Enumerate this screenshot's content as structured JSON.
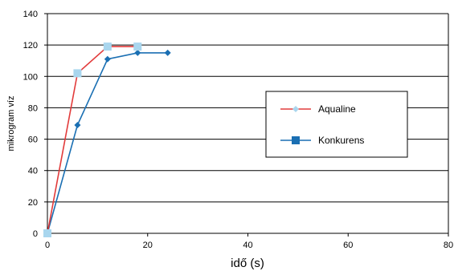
{
  "chart_data": {
    "type": "line",
    "xlabel": "idő (s)",
    "ylabel": "mikrogram víz",
    "xlim": [
      0,
      80
    ],
    "ylim": [
      0,
      140
    ],
    "xticks": [
      0,
      20,
      40,
      60,
      80
    ],
    "yticks": [
      0,
      20,
      40,
      60,
      80,
      100,
      120,
      140
    ],
    "grid": "horizontal",
    "legend_position": "right",
    "series": [
      {
        "name": "Aqualine",
        "color": "#e23b3b",
        "marker": "diamond",
        "marker_color": "#a9d6ee",
        "x": [
          0,
          6,
          12,
          18
        ],
        "y": [
          0,
          102,
          119,
          119
        ]
      },
      {
        "name": "Konkurens",
        "color": "#1a6fb3",
        "marker": "square",
        "marker_color": "#1a6fb3",
        "x": [
          0,
          6,
          12,
          18,
          24
        ],
        "y": [
          0,
          69,
          111,
          115,
          115
        ]
      }
    ],
    "overlay_markers": {
      "marker": "square",
      "color": "#a9d6ee",
      "points": [
        [
          0,
          0
        ],
        [
          6,
          102
        ],
        [
          12,
          119
        ],
        [
          18,
          119
        ]
      ]
    }
  }
}
